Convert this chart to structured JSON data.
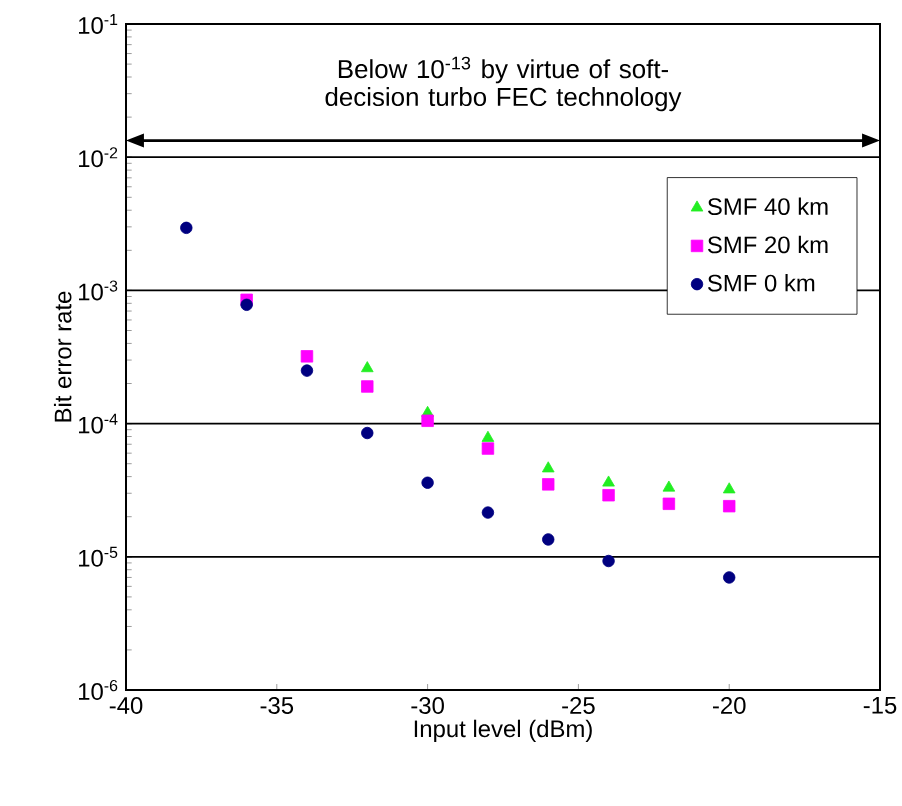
{
  "chart_data": {
    "type": "scatter",
    "xlabel": "Input level (dBm)",
    "ylabel": "Bit error rate",
    "annotations": [
      "Below 10$^{-13}$ by virtue of soft-decision turbo FEC technology"
    ],
    "x": [
      -38,
      -36,
      -34,
      -32,
      -30,
      -28,
      -26,
      -24,
      -22,
      -20
    ],
    "series": [
      {
        "name": "SMF 40 km",
        "color": "#22ee22",
        "marker": "triangle",
        "values": [
          null,
          null,
          null,
          0.00026,
          0.00012,
          7.8e-05,
          4.6e-05,
          3.6e-05,
          3.3e-05,
          3.2e-05
        ]
      },
      {
        "name": "SMF 20 km",
        "color": "#ff00ff",
        "marker": "square",
        "values": [
          null,
          0.00085,
          0.00032,
          0.00019,
          0.000105,
          6.5e-05,
          3.5e-05,
          2.9e-05,
          2.5e-05,
          2.4e-05
        ]
      },
      {
        "name": "SMF 0 km",
        "color": "#000080",
        "marker": "circle",
        "values": [
          0.00295,
          0.00078,
          0.00025,
          8.5e-05,
          3.6e-05,
          2.15e-05,
          1.35e-05,
          9.3e-06,
          null,
          7e-06
        ]
      }
    ],
    "xlim": [
      -40,
      -15
    ],
    "xticks": [
      -40,
      -35,
      -30,
      -25,
      -20,
      -15
    ],
    "ylim": [
      1e-06,
      0.1
    ],
    "yticks": [
      {
        "value": 1e-06,
        "label": "10$^{-6}$"
      },
      {
        "value": 1e-05,
        "label": "10$^{-5}$"
      },
      {
        "value": 0.0001,
        "label": "10$^{-4}$"
      },
      {
        "value": 0.001,
        "label": "10$^{-3}$"
      },
      {
        "value": 0.01,
        "label": "10$^{-2}$"
      },
      {
        "value": 0.1,
        "label": "10$^{-1}$"
      }
    ],
    "log": "y",
    "grid": "y",
    "legend": "top right"
  }
}
